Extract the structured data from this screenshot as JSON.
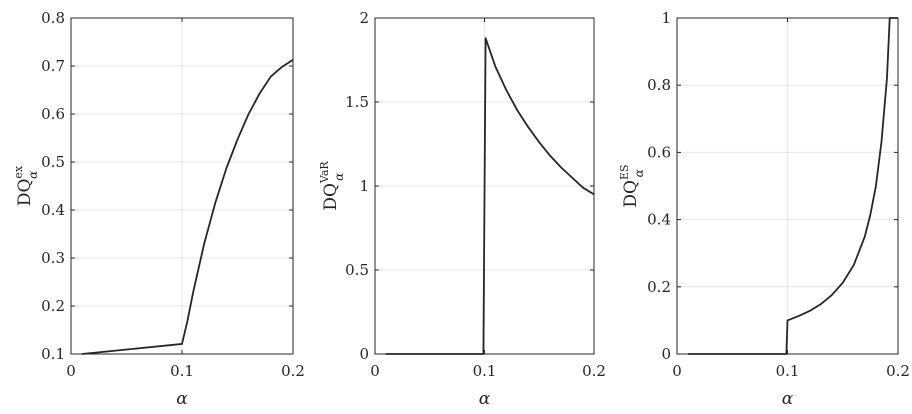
{
  "chart_data": [
    {
      "type": "line",
      "xlabel": "α",
      "ylabel": {
        "base": "DQ",
        "sub": "α",
        "sup": "ex"
      },
      "xlim": [
        0,
        0.2
      ],
      "ylim": [
        0.1,
        0.8
      ],
      "xticks": [
        0,
        0.1,
        0.2
      ],
      "xtick_labels": [
        "0",
        "0.1",
        "0.2"
      ],
      "yticks": [
        0.1,
        0.2,
        0.3,
        0.4,
        0.5,
        0.6,
        0.7,
        0.8
      ],
      "ytick_labels": [
        "0.1",
        "0.2",
        "0.3",
        "0.4",
        "0.5",
        "0.6",
        "0.7",
        "0.8"
      ],
      "grid": true,
      "line_color": "#262626",
      "x": [
        0.01,
        0.1,
        0.105,
        0.11,
        0.12,
        0.13,
        0.14,
        0.15,
        0.16,
        0.17,
        0.18,
        0.19,
        0.2
      ],
      "y": [
        0.1,
        0.121,
        0.17,
        0.228,
        0.33,
        0.415,
        0.487,
        0.547,
        0.6,
        0.643,
        0.678,
        0.698,
        0.713
      ]
    },
    {
      "type": "line",
      "xlabel": "α",
      "ylabel": {
        "base": "DQ",
        "sub": "α",
        "sup": "VaR"
      },
      "xlim": [
        0,
        0.2
      ],
      "ylim": [
        0,
        2
      ],
      "xticks": [
        0,
        0.1,
        0.2
      ],
      "xtick_labels": [
        "0",
        "0.1",
        "0.2"
      ],
      "yticks": [
        0,
        0.5,
        1,
        1.5,
        2
      ],
      "ytick_labels": [
        "0",
        "0.5",
        "1",
        "1.5",
        "2"
      ],
      "grid": true,
      "line_color": "#262626",
      "x": [
        0.01,
        0.099,
        0.101,
        0.11,
        0.12,
        0.13,
        0.14,
        0.15,
        0.16,
        0.17,
        0.18,
        0.19,
        0.2
      ],
      "y": [
        0,
        0,
        1.88,
        1.71,
        1.57,
        1.45,
        1.35,
        1.26,
        1.18,
        1.11,
        1.05,
        0.99,
        0.95
      ]
    },
    {
      "type": "line",
      "xlabel": "α",
      "ylabel": {
        "base": "DQ",
        "sub": "α",
        "sup": "ES"
      },
      "xlim": [
        0,
        0.2
      ],
      "ylim": [
        0,
        1
      ],
      "xticks": [
        0,
        0.1,
        0.2
      ],
      "xtick_labels": [
        "0",
        "0.1",
        "0.2"
      ],
      "yticks": [
        0,
        0.2,
        0.4,
        0.6,
        0.8,
        1
      ],
      "ytick_labels": [
        "0",
        "0.2",
        "0.4",
        "0.6",
        "0.8",
        "1"
      ],
      "grid": true,
      "line_color": "#262626",
      "x": [
        0.01,
        0.099,
        0.1,
        0.11,
        0.12,
        0.13,
        0.14,
        0.15,
        0.16,
        0.17,
        0.175,
        0.18,
        0.185,
        0.19,
        0.1925,
        0.2
      ],
      "y": [
        0,
        0,
        0.1,
        0.113,
        0.128,
        0.148,
        0.175,
        0.212,
        0.265,
        0.35,
        0.415,
        0.5,
        0.63,
        0.82,
        1.0,
        1.0
      ]
    }
  ]
}
